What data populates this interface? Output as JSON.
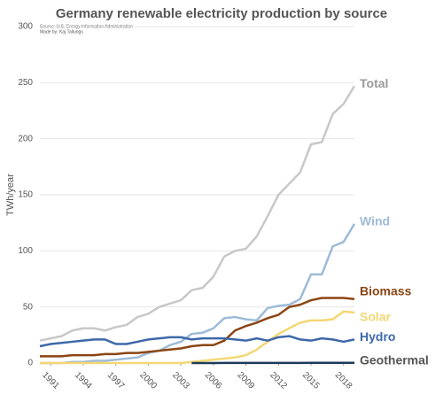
{
  "chart_data": {
    "type": "line",
    "title": "Germany renewable electricity production by source",
    "subtitle": "Source: U.S. Energy Information Administration",
    "credit": "Made by: Kaj Tallungs",
    "y_label": "TWh/year",
    "x": [
      1990,
      1991,
      1992,
      1993,
      1994,
      1995,
      1996,
      1997,
      1998,
      1999,
      2000,
      2001,
      2002,
      2003,
      2004,
      2005,
      2006,
      2007,
      2008,
      2009,
      2010,
      2011,
      2012,
      2013,
      2014,
      2015,
      2016,
      2017,
      2018,
      2019
    ],
    "xlim": [
      1990,
      2019
    ],
    "xticks": [
      1991,
      1994,
      1997,
      2000,
      2003,
      2006,
      2009,
      2012,
      2015,
      2018
    ],
    "ylim": [
      0,
      300
    ],
    "yticks": [
      0,
      50,
      100,
      150,
      200,
      250,
      300
    ],
    "grid": true,
    "series": [
      {
        "name": "Total",
        "color": "#c8c8c8",
        "values": [
          20,
          22,
          24,
          29,
          31,
          31,
          29,
          32,
          34,
          41,
          44,
          50,
          53,
          56,
          65,
          67,
          77,
          95,
          100,
          102,
          113,
          131,
          150,
          160,
          170,
          195,
          197,
          222,
          231,
          247
        ]
      },
      {
        "name": "Wind",
        "color": "#9dbbd8",
        "values": [
          0,
          0,
          0,
          1,
          1,
          2,
          2,
          3,
          4,
          5,
          9,
          11,
          16,
          19,
          26,
          27,
          31,
          40,
          41,
          39,
          38,
          49,
          51,
          52,
          57,
          79,
          79,
          104,
          108,
          124
        ]
      },
      {
        "name": "Biomass",
        "color": "#8b4513",
        "values": [
          6,
          6,
          6,
          7,
          7,
          7,
          8,
          8,
          9,
          9,
          10,
          11,
          12,
          13,
          15,
          16,
          16,
          20,
          29,
          33,
          36,
          40,
          43,
          50,
          52,
          56,
          58,
          58,
          58,
          57
        ]
      },
      {
        "name": "Solar",
        "color": "#f4d774",
        "values": [
          0,
          0,
          0,
          0,
          0,
          0,
          0,
          0,
          0,
          0,
          0,
          0,
          0,
          0,
          1,
          2,
          3,
          4,
          5,
          7,
          12,
          19,
          26,
          31,
          36,
          38,
          38,
          39,
          46,
          45
        ]
      },
      {
        "name": "Hydro",
        "color": "#3d68a8",
        "values": [
          15,
          17,
          18,
          19,
          20,
          21,
          21,
          17,
          17,
          19,
          21,
          22,
          23,
          23,
          21,
          22,
          22,
          22,
          21,
          20,
          22,
          20,
          23,
          24,
          21,
          20,
          22,
          21,
          19,
          21
        ]
      },
      {
        "name": "Geothermal",
        "color": "#1c3a5a",
        "values": [
          null,
          null,
          null,
          null,
          null,
          null,
          null,
          null,
          null,
          null,
          null,
          null,
          null,
          null,
          0,
          0,
          0,
          0.1,
          0.1,
          0.1,
          0.1,
          0.1,
          0.1,
          0.1,
          0.1,
          0.2,
          0.2,
          0.2,
          0.2,
          0.2
        ]
      }
    ]
  }
}
